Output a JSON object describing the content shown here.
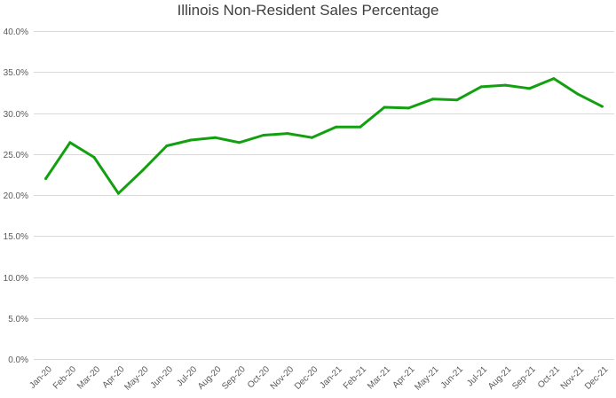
{
  "chart_data": {
    "type": "line",
    "title": "Illinois Non-Resident Sales Percentage",
    "xlabel": "",
    "ylabel": "",
    "categories": [
      "Jan-20",
      "Feb-20",
      "Mar-20",
      "Apr-20",
      "May-20",
      "Jun-20",
      "Jul-20",
      "Aug-20",
      "Sep-20",
      "Oct-20",
      "Nov-20",
      "Dec-20",
      "Jan-21",
      "Feb-21",
      "Mar-21",
      "Apr-21",
      "May-21",
      "Jun-21",
      "Jul-21",
      "Aug-21",
      "Sep-21",
      "Oct-21",
      "Nov-21",
      "Dec-21"
    ],
    "series": [
      {
        "values": [
          22.0,
          26.4,
          24.6,
          20.2,
          23.0,
          26.0,
          26.7,
          27.0,
          26.4,
          27.3,
          27.5,
          27.0,
          28.3,
          28.3,
          30.7,
          30.6,
          31.7,
          31.6,
          33.2,
          33.4,
          33.0,
          34.2,
          32.3,
          30.8
        ],
        "color": "#13A010"
      }
    ],
    "ylim": [
      0,
      40
    ],
    "yticks": [
      "0.0%",
      "5.0%",
      "10.0%",
      "15.0%",
      "20.0%",
      "25.0%",
      "30.0%",
      "35.0%",
      "40.0%"
    ],
    "grid": true,
    "legend": "none",
    "gridline_color": "#D9D9D9"
  }
}
